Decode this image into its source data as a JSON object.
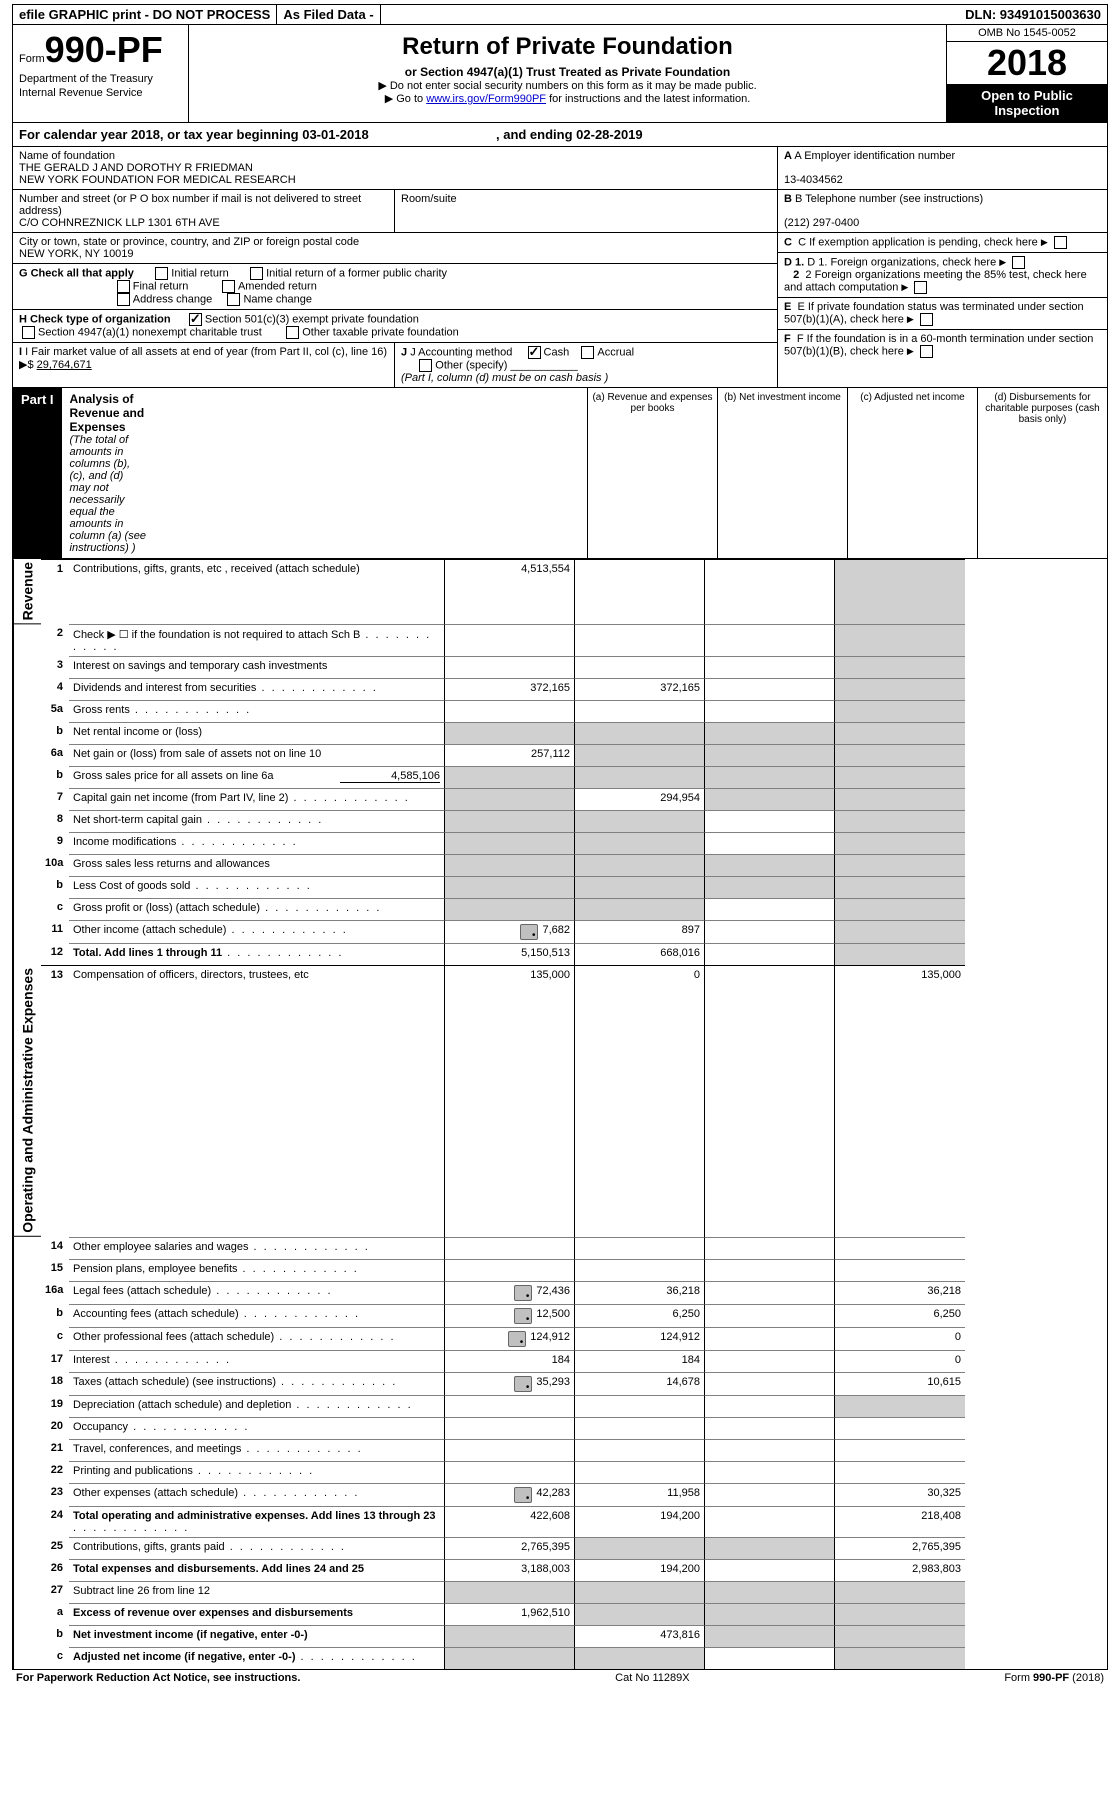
{
  "topbar": {
    "efile": "efile GRAPHIC print - DO NOT PROCESS",
    "asfiled": "As Filed Data -",
    "dln": "DLN: 93491015003630"
  },
  "header": {
    "form_prefix": "Form",
    "form_no": "990-PF",
    "dept": "Department of the Treasury",
    "irs": "Internal Revenue Service",
    "title": "Return of Private Foundation",
    "subtitle": "or Section 4947(a)(1) Trust Treated as Private Foundation",
    "note1": "▶ Do not enter social security numbers on this form as it may be made public.",
    "note2_pre": "▶ Go to ",
    "note2_link": "www.irs.gov/Form990PF",
    "note2_post": " for instructions and the latest information.",
    "omb": "OMB No  1545-0052",
    "year": "2018",
    "open": "Open to Public Inspection"
  },
  "cal": {
    "text": "For calendar year 2018, or tax year beginning 03-01-2018",
    "mid": ", and ending 02-28-2019"
  },
  "left": {
    "name_label": "Name of foundation",
    "name1": "THE GERALD J AND DOROTHY R FRIEDMAN",
    "name2": "NEW YORK FOUNDATION FOR MEDICAL RESEARCH",
    "addr_label": "Number and street (or P O  box number if mail is not delivered to street address)",
    "room_label": "Room/suite",
    "addr": "C/O COHNREZNICK LLP 1301 6TH AVE",
    "city_label": "City or town, state or province, country, and ZIP or foreign postal code",
    "city": "NEW YORK, NY  10019",
    "g_label": "G Check all that apply",
    "g_opts": [
      "Initial return",
      "Initial return of a former public charity",
      "Final return",
      "Amended return",
      "Address change",
      "Name change"
    ],
    "h_label": "H Check type of organization",
    "h_501": "Section 501(c)(3) exempt private foundation",
    "h_4947": "Section 4947(a)(1) nonexempt charitable trust",
    "h_other": "Other taxable private foundation",
    "i_label": "I Fair market value of all assets at end of year (from Part II, col  (c), line 16) ▶$ ",
    "i_val": "29,764,671",
    "j_label": "J Accounting method",
    "j_cash": "Cash",
    "j_accrual": "Accrual",
    "j_other": "Other (specify)",
    "j_note": "(Part I, column (d) must be on cash basis )"
  },
  "right": {
    "a_label": "A Employer identification number",
    "a_val": "13-4034562",
    "b_label": "B Telephone number (see instructions)",
    "b_val": "(212) 297-0400",
    "c_label": "C  If exemption application is pending, check here",
    "d1": "D 1. Foreign organizations, check here",
    "d2": "2  Foreign organizations meeting the 85% test, check here and attach computation",
    "e_label": "E  If private foundation status was terminated under section 507(b)(1)(A), check here",
    "f_label": "F  If the foundation is in a 60-month termination under section 507(b)(1)(B), check here"
  },
  "part1": {
    "label": "Part I",
    "title": "Analysis of Revenue and Expenses",
    "note": " (The total of amounts in columns (b), (c), and (d) may not necessarily equal the amounts in column (a) (see instructions) )",
    "cols": {
      "a": "(a) Revenue and expenses per books",
      "b": "(b) Net investment income",
      "c": "(c) Adjusted net income",
      "d": "(d) Disbursements for charitable purposes (cash basis only)"
    }
  },
  "sides": {
    "rev": "Revenue",
    "exp": "Operating and Administrative Expenses"
  },
  "rows": [
    {
      "n": "1",
      "d": "Contributions, gifts, grants, etc , received (attach schedule)",
      "a": "4,513,554",
      "shade_d": true
    },
    {
      "n": "2",
      "d": "Check ▶ ☐ if the foundation is not required to attach Sch  B",
      "dots": true,
      "shade_d": true,
      "bold_not": true
    },
    {
      "n": "3",
      "d": "Interest on savings and temporary cash investments",
      "shade_d": true
    },
    {
      "n": "4",
      "d": "Dividends and interest from securities",
      "dots": true,
      "a": "372,165",
      "b": "372,165",
      "shade_d": true
    },
    {
      "n": "5a",
      "d": "Gross rents",
      "dots": true,
      "shade_d": true
    },
    {
      "n": "b",
      "d": "Net rental income or (loss)",
      "underline_after": true,
      "shade_a": true,
      "shade_b": true,
      "shade_c": true,
      "shade_d": true
    },
    {
      "n": "6a",
      "d": "Net gain or (loss) from sale of assets not on line 10",
      "a": "257,112",
      "shade_b": true,
      "shade_c": true,
      "shade_d": true
    },
    {
      "n": "b",
      "d": "Gross sales price for all assets on line 6a",
      "tail": "4,585,106",
      "shade_a": true,
      "shade_b": true,
      "shade_c": true,
      "shade_d": true
    },
    {
      "n": "7",
      "d": "Capital gain net income (from Part IV, line 2)",
      "dots": true,
      "shade_a": true,
      "b": "294,954",
      "shade_c": true,
      "shade_d": true
    },
    {
      "n": "8",
      "d": "Net short-term capital gain",
      "dots": true,
      "shade_a": true,
      "shade_b": true,
      "shade_d": true
    },
    {
      "n": "9",
      "d": "Income modifications",
      "dots": true,
      "shade_a": true,
      "shade_b": true,
      "shade_d": true
    },
    {
      "n": "10a",
      "d": "Gross sales less returns and allowances",
      "box": true,
      "shade_a": true,
      "shade_b": true,
      "shade_c": true,
      "shade_d": true
    },
    {
      "n": "b",
      "d": "Less  Cost of goods sold",
      "dots": true,
      "box": true,
      "shade_a": true,
      "shade_b": true,
      "shade_c": true,
      "shade_d": true
    },
    {
      "n": "c",
      "d": "Gross profit or (loss) (attach schedule)",
      "dots": true,
      "shade_a": true,
      "shade_b": true,
      "shade_d": true
    },
    {
      "n": "11",
      "d": "Other income (attach schedule)",
      "dots": true,
      "icon": true,
      "a": "7,682",
      "b": "897",
      "shade_d": true
    },
    {
      "n": "12",
      "d": "Total. Add lines 1 through 11",
      "dots": true,
      "bold": true,
      "a": "5,150,513",
      "b": "668,016",
      "shade_d": true
    },
    {
      "n": "13",
      "d": "Compensation of officers, directors, trustees, etc",
      "a": "135,000",
      "b": "0",
      "dv": "135,000",
      "sect": "exp"
    },
    {
      "n": "14",
      "d": "Other employee salaries and wages",
      "dots": true
    },
    {
      "n": "15",
      "d": "Pension plans, employee benefits",
      "dots": true
    },
    {
      "n": "16a",
      "d": "Legal fees (attach schedule)",
      "dots": true,
      "icon": true,
      "a": "72,436",
      "b": "36,218",
      "dv": "36,218"
    },
    {
      "n": "b",
      "d": "Accounting fees (attach schedule)",
      "dots": true,
      "icon": true,
      "a": "12,500",
      "b": "6,250",
      "dv": "6,250"
    },
    {
      "n": "c",
      "d": "Other professional fees (attach schedule)",
      "dots": true,
      "icon": true,
      "a": "124,912",
      "b": "124,912",
      "dv": "0"
    },
    {
      "n": "17",
      "d": "Interest",
      "dots": true,
      "a": "184",
      "b": "184",
      "dv": "0"
    },
    {
      "n": "18",
      "d": "Taxes (attach schedule) (see instructions)",
      "dots": true,
      "icon": true,
      "a": "35,293",
      "b": "14,678",
      "dv": "10,615"
    },
    {
      "n": "19",
      "d": "Depreciation (attach schedule) and depletion",
      "dots": true,
      "shade_d": true
    },
    {
      "n": "20",
      "d": "Occupancy",
      "dots": true
    },
    {
      "n": "21",
      "d": "Travel, conferences, and meetings",
      "dots": true
    },
    {
      "n": "22",
      "d": "Printing and publications",
      "dots": true
    },
    {
      "n": "23",
      "d": "Other expenses (attach schedule)",
      "dots": true,
      "icon": true,
      "a": "42,283",
      "b": "11,958",
      "dv": "30,325"
    },
    {
      "n": "24",
      "d": "Total operating and administrative expenses. Add lines 13 through 23",
      "dots": true,
      "bold": true,
      "a": "422,608",
      "b": "194,200",
      "dv": "218,408"
    },
    {
      "n": "25",
      "d": "Contributions, gifts, grants paid",
      "dots": true,
      "a": "2,765,395",
      "shade_b": true,
      "shade_c": true,
      "dv": "2,765,395"
    },
    {
      "n": "26",
      "d": "Total expenses and disbursements. Add lines 24 and 25",
      "bold": true,
      "a": "3,188,003",
      "b": "194,200",
      "dv": "2,983,803"
    },
    {
      "n": "27",
      "d": "Subtract line 26 from line 12",
      "shade_a": true,
      "shade_b": true,
      "shade_c": true,
      "shade_d": true
    },
    {
      "n": "a",
      "d": "Excess of revenue over expenses and disbursements",
      "bold": true,
      "a": "1,962,510",
      "shade_b": true,
      "shade_c": true,
      "shade_d": true
    },
    {
      "n": "b",
      "d": "Net investment income (if negative, enter -0-)",
      "bold": true,
      "shade_a": true,
      "b": "473,816",
      "shade_c": true,
      "shade_d": true
    },
    {
      "n": "c",
      "d": "Adjusted net income (if negative, enter -0-)",
      "dots": true,
      "bold": true,
      "shade_a": true,
      "shade_b": true,
      "shade_d": true
    }
  ],
  "footer": {
    "left": "For Paperwork Reduction Act Notice, see instructions.",
    "mid": "Cat  No  11289X",
    "right": "Form 990-PF (2018)"
  }
}
